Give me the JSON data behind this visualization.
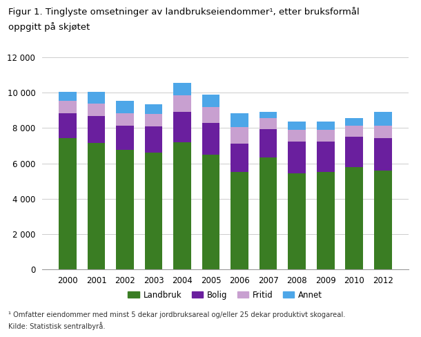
{
  "years": [
    2000,
    2001,
    2002,
    2003,
    2004,
    2005,
    2006,
    2007,
    2008,
    2009,
    2010,
    2012
  ],
  "landbruk": [
    7450,
    7150,
    6750,
    6600,
    7200,
    6500,
    5500,
    6350,
    5450,
    5500,
    5800,
    5600
  ],
  "bolig": [
    1400,
    1550,
    1400,
    1500,
    1700,
    1800,
    1600,
    1600,
    1800,
    1750,
    1700,
    1850
  ],
  "fritid": [
    680,
    680,
    700,
    700,
    950,
    900,
    950,
    600,
    650,
    650,
    650,
    700
  ],
  "annet": [
    500,
    650,
    700,
    550,
    700,
    700,
    800,
    350,
    450,
    450,
    400,
    750
  ],
  "colors": {
    "landbruk": "#3a7d23",
    "bolig": "#6a1f9e",
    "fritid": "#c8a0d0",
    "annet": "#4da6e8"
  },
  "title_line1": "Figur 1. Tinglyste omsetninger av landbrukseiendommer¹, etter bruksformål",
  "title_line2": "oppgitt på skjøtet",
  "ylim": [
    0,
    12000
  ],
  "yticks": [
    0,
    2000,
    4000,
    6000,
    8000,
    10000,
    12000
  ],
  "ytick_labels": [
    "0",
    "2 000",
    "4 000",
    "6 000",
    "8 000",
    "10 000",
    "12 000"
  ],
  "legend_labels": [
    "Landbruk",
    "Bolig",
    "Fritid",
    "Annet"
  ],
  "footnote1": "¹ Omfatter eiendommer med minst 5 dekar jordbruksareal og/eller 25 dekar produktivt skogareal.",
  "footnote2": "Kilde: Statistisk sentralbyrå."
}
